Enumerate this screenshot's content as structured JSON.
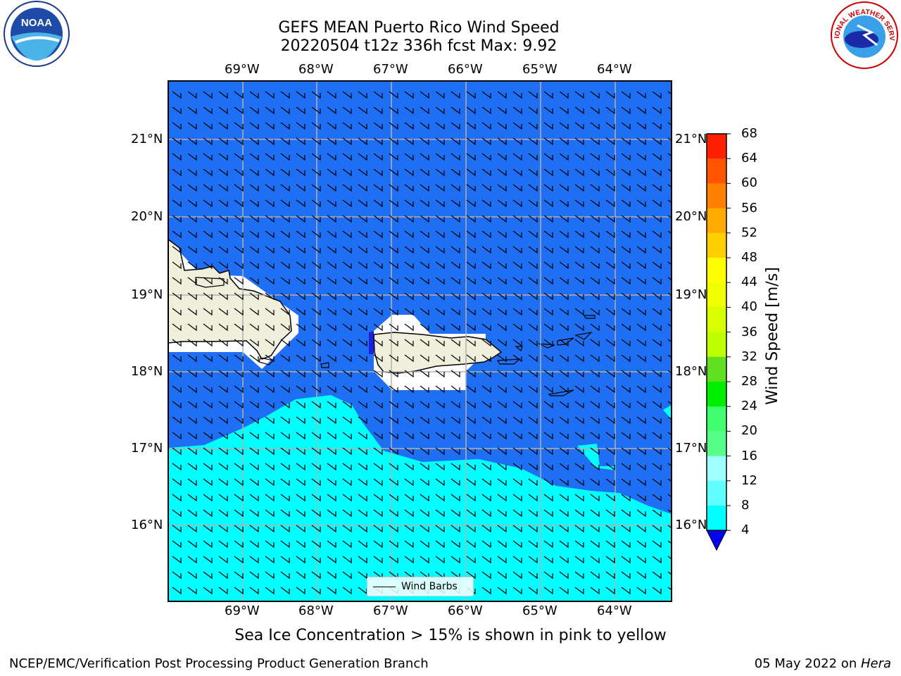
{
  "header": {
    "title_line1": "GEFS MEAN Puerto Rico Wind Speed",
    "title_line2": "20220504 t12z 336h fcst   Max: 9.92"
  },
  "logos": {
    "left": {
      "icon": "noaa-logo-icon",
      "text": "NOAA"
    },
    "right": {
      "icon": "nws-logo-icon",
      "text": "NATIONAL WEATHER SERVICE"
    }
  },
  "map": {
    "lon_labels": [
      "69°W",
      "68°W",
      "67°W",
      "66°W",
      "65°W",
      "64°W"
    ],
    "lat_labels": [
      "21°N",
      "20°N",
      "19°N",
      "18°N",
      "17°N",
      "16°N"
    ],
    "colors": {
      "ocean_4_8": "#1f6ff5",
      "ocean_8_12": "#00ffff",
      "land": "#efefdc",
      "mask": "#ffffff"
    },
    "legend_label": "Wind Barbs"
  },
  "colorbar": {
    "title": "Wind Speed [m/s]",
    "ticks": [
      "68",
      "64",
      "60",
      "56",
      "52",
      "48",
      "44",
      "40",
      "36",
      "32",
      "28",
      "24",
      "20",
      "16",
      "12",
      "8",
      "4"
    ],
    "colors": [
      "#ff0000",
      "#ff2000",
      "#ff5500",
      "#ff8000",
      "#ffaa00",
      "#ffd000",
      "#ffff00",
      "#f0ff00",
      "#d8ff00",
      "#c0ff00",
      "#60e020",
      "#00ee00",
      "#40ff70",
      "#55ff88",
      "#a0ffff",
      "#60ffff",
      "#00ffff",
      "#1f6ff5"
    ]
  },
  "footer": {
    "note": "Sea Ice Concentration > 15% is shown in pink to yellow",
    "left": "NCEP/EMC/Verification Post Processing Product Generation Branch",
    "right_date": "05 May 2022 on ",
    "right_host": "Hera"
  }
}
